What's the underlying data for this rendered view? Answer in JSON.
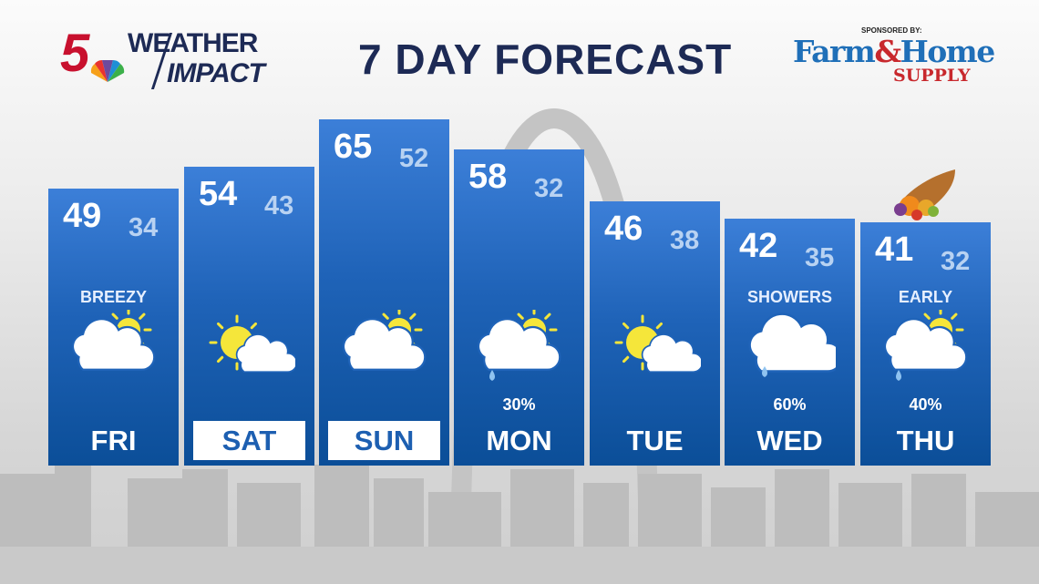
{
  "header": {
    "station_logo": "5",
    "brand_line1": "WEATHER",
    "brand_line2": "IMPACT",
    "title": "7 DAY FORECAST",
    "sponsor_label": "SPONSORED BY:",
    "sponsor_name_1": "Farm",
    "sponsor_amp": "&",
    "sponsor_name_2": "Home",
    "sponsor_name_3": "SUPPLY"
  },
  "colors": {
    "column_top": "#3c7fd8",
    "column_bottom": "#0b4e98",
    "low_temp": "#b8d2f2",
    "title": "#1d2a55",
    "sun": "#f5e63a"
  },
  "days": [
    {
      "day": "FRI",
      "hi": "49",
      "lo": "34",
      "condition": "BREEZY",
      "pop": "",
      "icon": "partly-cloudy-icon",
      "boxed": false
    },
    {
      "day": "SAT",
      "hi": "54",
      "lo": "43",
      "condition": "",
      "pop": "",
      "icon": "partly-sunny-icon",
      "boxed": true
    },
    {
      "day": "SUN",
      "hi": "65",
      "lo": "52",
      "condition": "",
      "pop": "",
      "icon": "partly-cloudy-icon",
      "boxed": true
    },
    {
      "day": "MON",
      "hi": "58",
      "lo": "32",
      "condition": "",
      "pop": "30%",
      "icon": "partly-cloudy-shower-icon",
      "boxed": false
    },
    {
      "day": "TUE",
      "hi": "46",
      "lo": "38",
      "condition": "",
      "pop": "",
      "icon": "partly-sunny-icon",
      "boxed": false
    },
    {
      "day": "WED",
      "hi": "42",
      "lo": "35",
      "condition": "SHOWERS",
      "pop": "60%",
      "icon": "cloudy-shower-icon",
      "boxed": false
    },
    {
      "day": "THU",
      "hi": "41",
      "lo": "32",
      "condition": "EARLY",
      "pop": "40%",
      "icon": "partly-cloudy-shower-icon",
      "boxed": false
    }
  ]
}
